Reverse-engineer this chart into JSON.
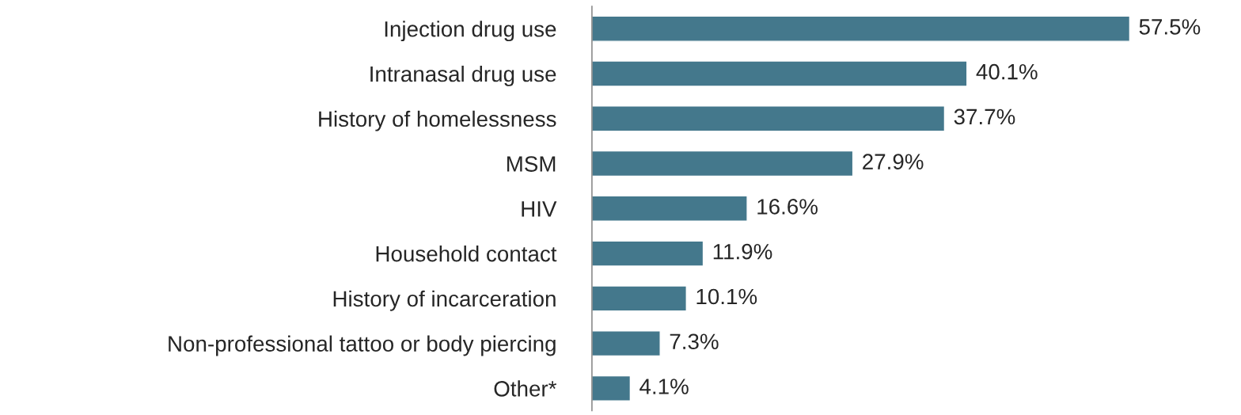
{
  "chart_data": {
    "type": "bar",
    "orientation": "horizontal",
    "color": "#44788c",
    "value_labels": [
      "57.5%",
      "40.1%",
      "37.7%",
      "27.9%",
      "16.6%",
      "11.9%",
      "10.1%",
      "7.3%",
      "4.1%"
    ],
    "categories": [
      "Injection drug use",
      "Intranasal drug use",
      "History of homelessness",
      "MSM",
      "HIV",
      "Household contact",
      "History of incarceration",
      "Non-professional tattoo or body piercing",
      "Other*"
    ],
    "values": [
      57.5,
      40.1,
      37.7,
      27.9,
      16.6,
      11.9,
      10.1,
      7.3,
      4.1
    ],
    "tick_labels": "y",
    "grid": false,
    "legend": false
  }
}
